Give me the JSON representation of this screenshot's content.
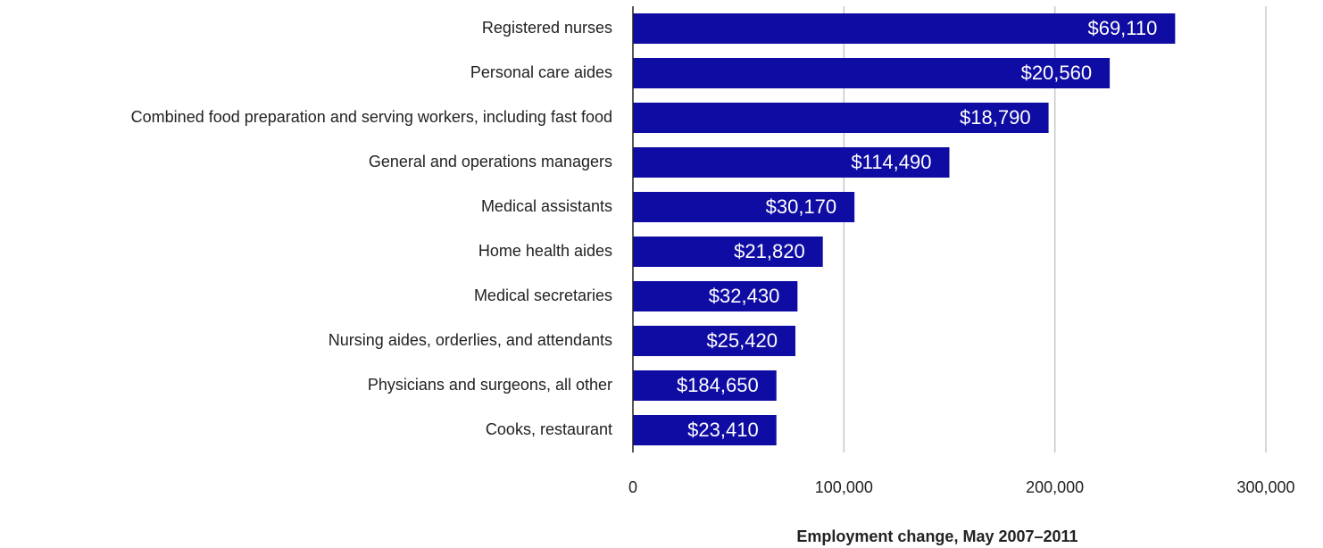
{
  "chart_data": {
    "type": "bar",
    "orientation": "horizontal",
    "x_label": "Employment change, May 2007–2011",
    "categories": [
      "Registered nurses",
      "Personal care aides",
      "Combined food preparation and serving workers, including fast food",
      "General and operations  managers",
      "Medical assistants",
      "Home health aides",
      "Medical secretaries",
      "Nursing aides, orderlies, and attendants",
      "Physicians and surgeons, all other",
      "Cooks, restaurant"
    ],
    "values": [
      257000,
      226000,
      197000,
      150000,
      105000,
      90000,
      78000,
      77000,
      68000,
      68000
    ],
    "bar_labels": [
      "$69,110",
      "$20,560",
      "$18,790",
      "$114,490",
      "$30,170",
      "$21,820",
      "$32,430",
      "$25,420",
      "$184,650",
      "$23,410"
    ],
    "color": "#0f0ca3",
    "xlim": [
      0,
      300000
    ],
    "xticks": [
      0,
      {
        "value": 100000,
        "label": "100,000"
      },
      {
        "value": 200000,
        "label": "200,000"
      },
      {
        "value": 300000,
        "label": "300,000"
      }
    ],
    "grid": true
  }
}
